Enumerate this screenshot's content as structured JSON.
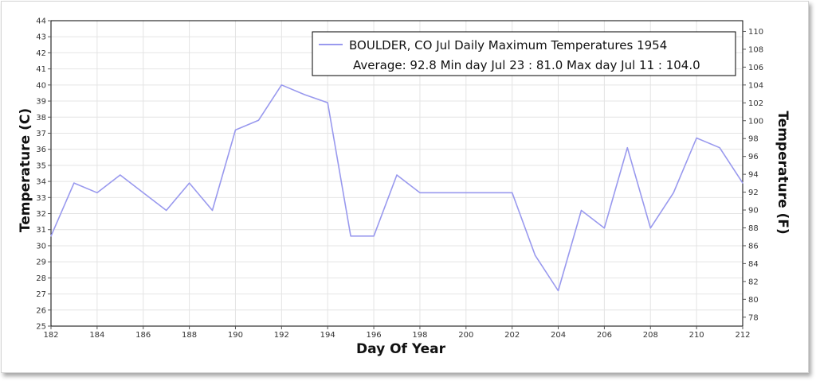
{
  "chart_data": {
    "type": "line",
    "xlabel": "Day Of Year",
    "ylabel": "Temperature (C)",
    "y2label": "Temperature (F)",
    "xlim": [
      182,
      212
    ],
    "ylim": [
      25,
      44
    ],
    "y2lim": [
      77,
      111.2
    ],
    "x_ticks": [
      182,
      184,
      186,
      188,
      190,
      192,
      194,
      196,
      198,
      200,
      202,
      204,
      206,
      208,
      210,
      212
    ],
    "y_ticks": [
      25,
      26,
      27,
      28,
      29,
      30,
      31,
      32,
      33,
      34,
      35,
      36,
      37,
      38,
      39,
      40,
      41,
      42,
      43,
      44
    ],
    "y2_ticks": [
      78,
      80,
      82,
      84,
      86,
      88,
      90,
      92,
      94,
      96,
      98,
      100,
      102,
      104,
      106,
      108,
      110
    ],
    "grid": true,
    "legend_position": "top-right",
    "series": [
      {
        "name": "BOULDER, CO  Jul  Daily Maximum Temperatures 1954",
        "color": "#9999ee",
        "x": [
          182,
          183,
          184,
          185,
          186,
          187,
          188,
          189,
          190,
          191,
          192,
          193,
          194,
          195,
          196,
          197,
          198,
          199,
          200,
          201,
          202,
          203,
          204,
          205,
          206,
          207,
          208,
          209,
          210,
          211,
          212
        ],
        "y": [
          30.6,
          33.9,
          33.3,
          34.4,
          33.3,
          32.2,
          33.9,
          32.2,
          37.2,
          37.8,
          40.0,
          39.4,
          38.9,
          30.6,
          30.6,
          34.4,
          33.3,
          33.3,
          33.3,
          33.3,
          33.3,
          29.4,
          27.2,
          32.2,
          31.1,
          36.1,
          31.1,
          33.3,
          36.7,
          36.1,
          33.9
        ]
      }
    ],
    "annotation": "Average: 92.8  Min day Jul 23 : 81.0  Max day Jul 11 : 104.0"
  }
}
